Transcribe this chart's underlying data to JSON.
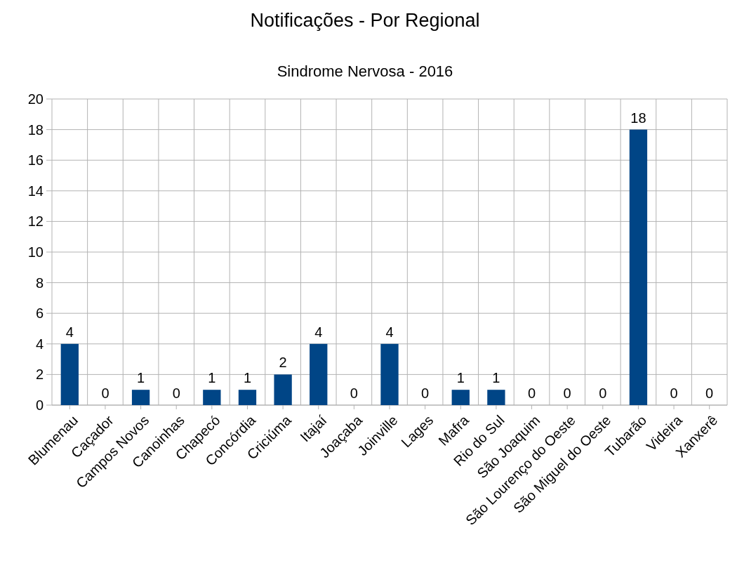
{
  "chart_data": {
    "type": "bar",
    "title": "Notificações - Por Regional",
    "subtitle": "Sindrome Nervosa - 2016",
    "categories": [
      "Blumenau",
      "Caçador",
      "Campos Novos",
      "Canoinhas",
      "Chapecó",
      "Concórdia",
      "Criciúma",
      "Itajaí",
      "Joaçaba",
      "Joinville",
      "Lages",
      "Mafra",
      "Rio do Sul",
      "São Joaquim",
      "São Lourenço do Oeste",
      "São Miguel do Oeste",
      "Tubarão",
      "Videira",
      "Xanxerê"
    ],
    "values": [
      4,
      0,
      1,
      0,
      1,
      1,
      2,
      4,
      0,
      4,
      0,
      1,
      1,
      0,
      0,
      0,
      18,
      0,
      0
    ],
    "color": "#004586",
    "ylim": [
      0,
      20
    ],
    "yticks": [
      0,
      2,
      4,
      6,
      8,
      10,
      12,
      14,
      16,
      18,
      20
    ],
    "grid": true,
    "data_labels": true
  }
}
